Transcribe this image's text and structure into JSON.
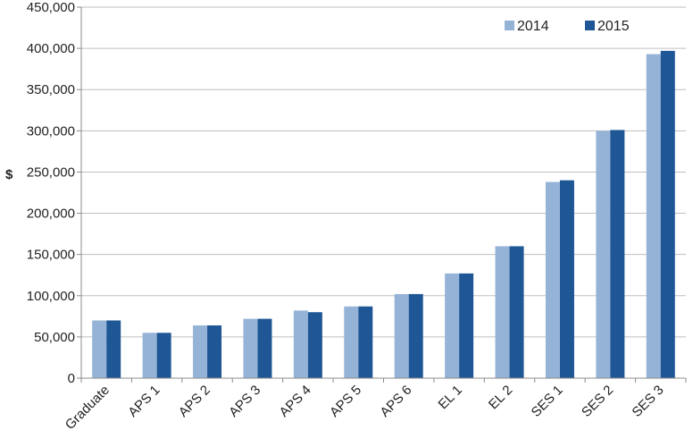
{
  "chart_data": {
    "type": "bar",
    "title": "",
    "xlabel": "",
    "ylabel": "$",
    "ylim": [
      0,
      450000
    ],
    "ytick_step": 50000,
    "grid": true,
    "legend_position": "top-right",
    "categories": [
      "Graduate",
      "APS 1",
      "APS 2",
      "APS 3",
      "APS 4",
      "APS 5",
      "APS 6",
      "EL 1",
      "EL 2",
      "SES 1",
      "SES 2",
      "SES 3"
    ],
    "series": [
      {
        "name": "2014",
        "color": "#95b3d7",
        "values": [
          70000,
          55000,
          64000,
          72000,
          82000,
          87000,
          102000,
          127000,
          160000,
          238000,
          300000,
          393000
        ]
      },
      {
        "name": "2015",
        "color": "#1f5796",
        "values": [
          70000,
          55000,
          64000,
          72000,
          80000,
          87000,
          102000,
          127000,
          160000,
          240000,
          301000,
          397000
        ]
      }
    ]
  }
}
